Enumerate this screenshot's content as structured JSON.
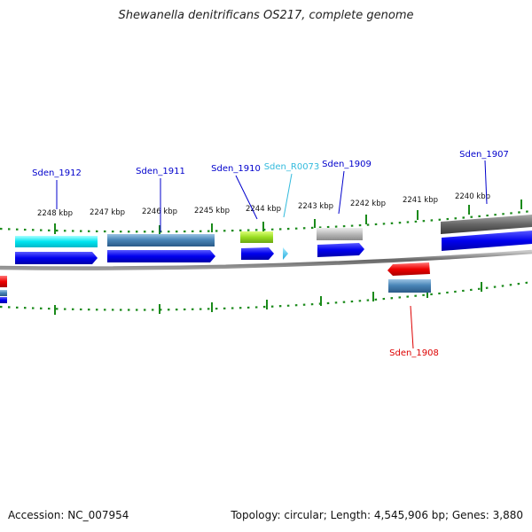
{
  "title": "Shewanella denitrificans OS217, complete genome",
  "accession": "Accession: NC_007954",
  "summary": "Topology: circular; Length: 4,545,906 bp; Genes: 3,880",
  "colors": {
    "gene_label": "#0000cc",
    "rna_label": "#33bbdd",
    "reverse_label": "#dd0000",
    "tick": "#1a8a1a",
    "backbone": "#777777",
    "forward_cds": "#0000ee",
    "reverse_cds": "#ee0000"
  },
  "kbp_labels": [
    "2248 kbp",
    "2247 kbp",
    "2246 kbp",
    "2245 kbp",
    "2244 kbp",
    "2243 kbp",
    "2242 kbp",
    "2241 kbp",
    "2240 kbp"
  ],
  "genes": [
    {
      "label": "Sden_1912",
      "type": "forward"
    },
    {
      "label": "Sden_1911",
      "type": "forward"
    },
    {
      "label": "Sden_1910",
      "type": "forward"
    },
    {
      "label": "Sden_R0073",
      "type": "rna"
    },
    {
      "label": "Sden_1909",
      "type": "forward"
    },
    {
      "label": "Sden_1907",
      "type": "forward"
    },
    {
      "label": "Sden_1908",
      "type": "reverse"
    }
  ]
}
